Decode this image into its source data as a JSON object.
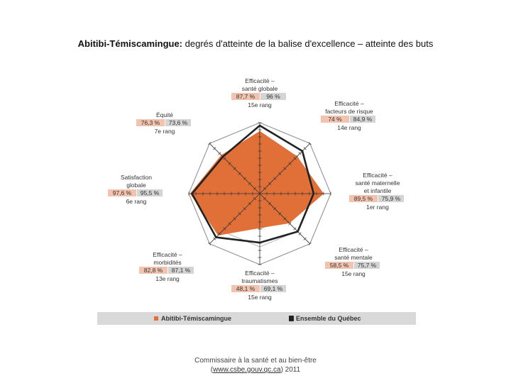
{
  "title": {
    "region": "Abitibi-Témiscamingue:",
    "rest": " degrés d'atteinte de la balise d'excellence – atteinte des buts"
  },
  "chart_data": {
    "type": "radar",
    "categories": [
      {
        "label": [
          "Efficacité –",
          "santé globale"
        ],
        "region_value": "87,7 %",
        "quebec_value": "96 %",
        "rank": "15e rang"
      },
      {
        "label": [
          "Efficacité –",
          "facteurs de risque"
        ],
        "region_value": "74 %",
        "quebec_value": "84,9 %",
        "rank": "14e rang"
      },
      {
        "label": [
          "Efficacité –",
          "santé maternelle",
          "et infantile"
        ],
        "region_value": "89,5 %",
        "quebec_value": "75,9 %",
        "rank": "1er rang"
      },
      {
        "label": [
          "Efficacité –",
          "santé mentale"
        ],
        "region_value": "58,5 %",
        "quebec_value": "75,7 %",
        "rank": "15e rang"
      },
      {
        "label": [
          "Efficacité –",
          "traumatismes"
        ],
        "region_value": "48,1 %",
        "quebec_value": "69,1 %",
        "rank": "15e rang"
      },
      {
        "label": [
          "Efficacité –",
          "morbidités"
        ],
        "region_value": "82,8 %",
        "quebec_value": "87,1 %",
        "rank": "13e rang"
      },
      {
        "label": [
          "Satisfaction",
          "globale"
        ],
        "region_value": "97,6 %",
        "quebec_value": "95,5 %",
        "rank": "6e rang"
      },
      {
        "label": [
          "Équité"
        ],
        "region_value": "76,3 %",
        "quebec_value": "73,6 %",
        "rank": "7e rang"
      }
    ],
    "series": [
      {
        "name": "Abitibi-Témiscamingue",
        "values": [
          87.7,
          74,
          89.5,
          58.5,
          48.1,
          82.8,
          97.6,
          76.3
        ],
        "color": "#e07038"
      },
      {
        "name": "Ensemble du Québec",
        "values": [
          96,
          84.9,
          75.9,
          75.7,
          69.1,
          87.1,
          95.5,
          73.6
        ],
        "color": "#222222"
      }
    ],
    "rmax": 100,
    "legend_position": "bottom",
    "colors": {
      "region_box": "#f2c4b0",
      "quebec_box": "#d4d4d4",
      "legend_bg": "#d9d9d9"
    }
  },
  "footer": {
    "line1": "Commissaire à la santé et au bien-être",
    "paren_open": "(",
    "link": "www.csbe.gouv.qc.ca",
    "line2_rest": ") 2011"
  }
}
